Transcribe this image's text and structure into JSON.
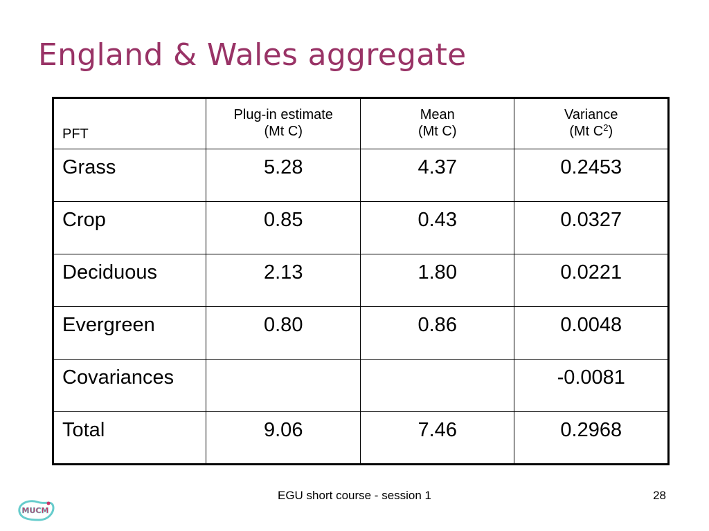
{
  "slide": {
    "title": "England & Wales aggregate",
    "footer": "EGU short course - session 1",
    "page_number": "28",
    "logo_text": "MUCM"
  },
  "table": {
    "header": {
      "pft": "PFT",
      "plugin_line1": "Plug-in estimate",
      "plugin_line2": "(Mt C)",
      "mean_line1": "Mean",
      "mean_line2": "(Mt C)",
      "variance_line1": "Variance",
      "variance_line2_pre": "(Mt C",
      "variance_sup": "2",
      "variance_line2_post": ")"
    },
    "rows": [
      {
        "pft": "Grass",
        "plugin": "5.28",
        "mean": "4.37",
        "variance": "0.2453"
      },
      {
        "pft": "Crop",
        "plugin": "0.85",
        "mean": "0.43",
        "variance": "0.0327"
      },
      {
        "pft": "Deciduous",
        "plugin": "2.13",
        "mean": "1.80",
        "variance": "0.0221"
      },
      {
        "pft": "Evergreen",
        "plugin": "0.80",
        "mean": "0.86",
        "variance": "0.0048"
      },
      {
        "pft": "Covariances",
        "plugin": "",
        "mean": "",
        "variance": "-0.0081"
      },
      {
        "pft": "Total",
        "plugin": "9.06",
        "mean": "7.46",
        "variance": "0.2968"
      }
    ]
  },
  "colors": {
    "title": "#993366",
    "logo_fill": "#cc3366",
    "logo_outline": "#66cccc"
  }
}
